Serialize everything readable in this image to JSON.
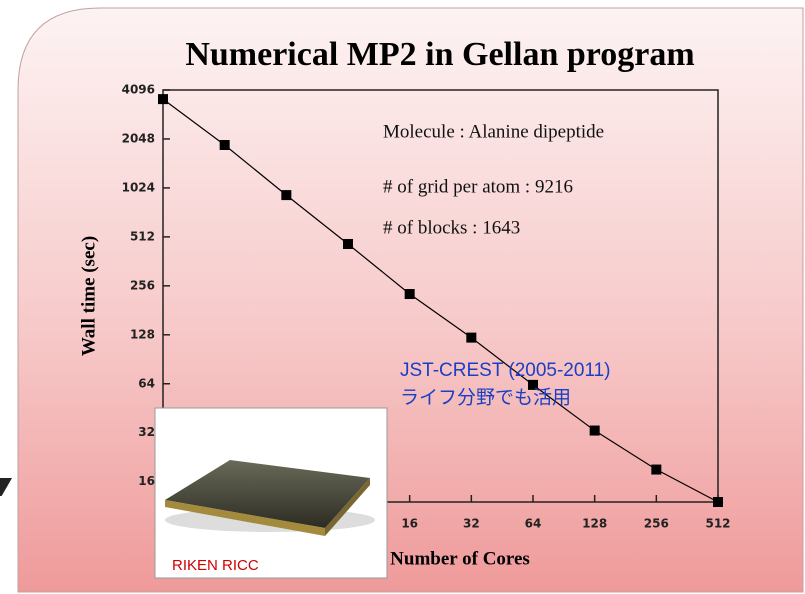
{
  "chart_data": {
    "type": "line",
    "title": "Numerical MP2 in Gellan program",
    "x_label": "Number of Cores",
    "y_label": "Wall time (sec)",
    "x": [
      1,
      2,
      4,
      8,
      16,
      32,
      64,
      128,
      256,
      512
    ],
    "values": [
      3600,
      1880,
      925,
      463,
      228,
      123,
      63,
      33,
      19,
      12
    ],
    "color": "#000000",
    "xlim": [
      1,
      512
    ],
    "xticks": [
      16,
      32,
      64,
      128,
      256,
      512
    ],
    "ylim": [
      12,
      4096
    ],
    "yticks": [
      16,
      32,
      64,
      128,
      256,
      512,
      1024,
      2048,
      4096
    ],
    "xscale": "log",
    "yscale": "log",
    "annotations": [
      "Molecule : Alanine dipeptide",
      "# of grid per atom : 9216",
      "# of blocks : 1643",
      "JST-CREST (2005-2011)",
      "ライフ分野でも活用",
      "RIKEN RICC"
    ]
  }
}
